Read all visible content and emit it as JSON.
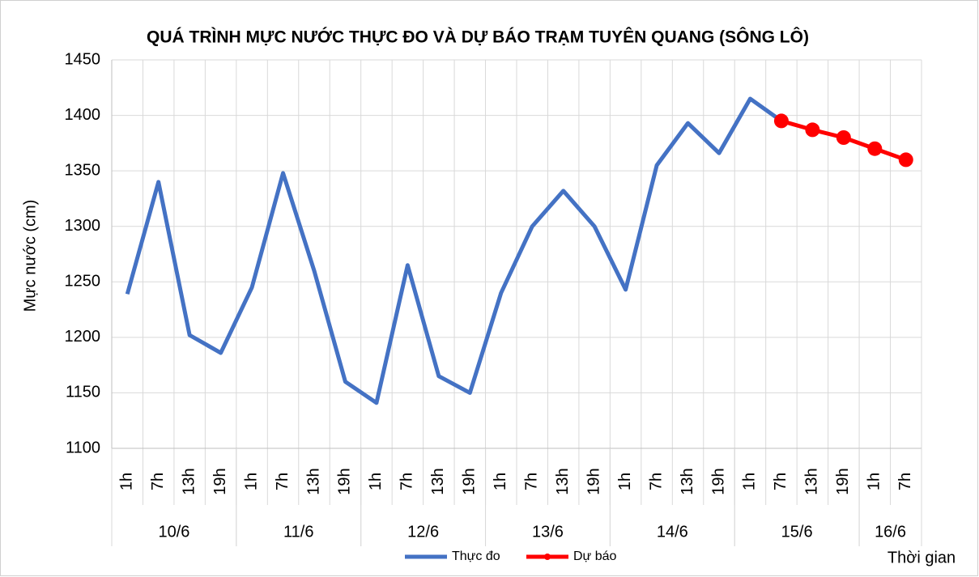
{
  "chart_data": {
    "type": "line",
    "title": "QUÁ TRÌNH MỰC NƯỚC THỰC ĐO VÀ DỰ BÁO TRẠM TUYÊN QUANG (SÔNG LÔ)",
    "y_label": "Mực nước (cm)",
    "x_label": "Thời gian",
    "categories": [
      "1h",
      "7h",
      "13h",
      "19h",
      "1h",
      "7h",
      "13h",
      "19h",
      "1h",
      "7h",
      "13h",
      "19h",
      "1h",
      "7h",
      "13h",
      "19h",
      "1h",
      "7h",
      "13h",
      "19h",
      "1h",
      "7h",
      "13h",
      "19h",
      "1h",
      "7h"
    ],
    "groups": [
      {
        "label": "10/6",
        "span": 4
      },
      {
        "label": "11/6",
        "span": 4
      },
      {
        "label": "12/6",
        "span": 4
      },
      {
        "label": "13/6",
        "span": 4
      },
      {
        "label": "14/6",
        "span": 4
      },
      {
        "label": "15/6",
        "span": 4
      },
      {
        "label": "16/6",
        "span": 2
      }
    ],
    "series": [
      {
        "name": "Thực đo",
        "color": "#4472c4",
        "markers": false,
        "values": [
          1239,
          1340,
          1202,
          1186,
          1245,
          1348,
          1260,
          1160,
          1141,
          1265,
          1165,
          1150,
          1240,
          1300,
          1332,
          1300,
          1243,
          1355,
          1393,
          1366,
          1415,
          1395,
          null,
          null,
          null,
          null
        ]
      },
      {
        "name": "Dự báo",
        "color": "#ff0000",
        "markers": true,
        "values": [
          null,
          null,
          null,
          null,
          null,
          null,
          null,
          null,
          null,
          null,
          null,
          null,
          null,
          null,
          null,
          null,
          null,
          null,
          null,
          null,
          null,
          1395,
          1387,
          1380,
          1370,
          1360
        ]
      }
    ],
    "ylim": [
      1100,
      1450
    ],
    "yticks": [
      1100,
      1150,
      1200,
      1250,
      1300,
      1350,
      1400,
      1450
    ],
    "grid": true
  }
}
